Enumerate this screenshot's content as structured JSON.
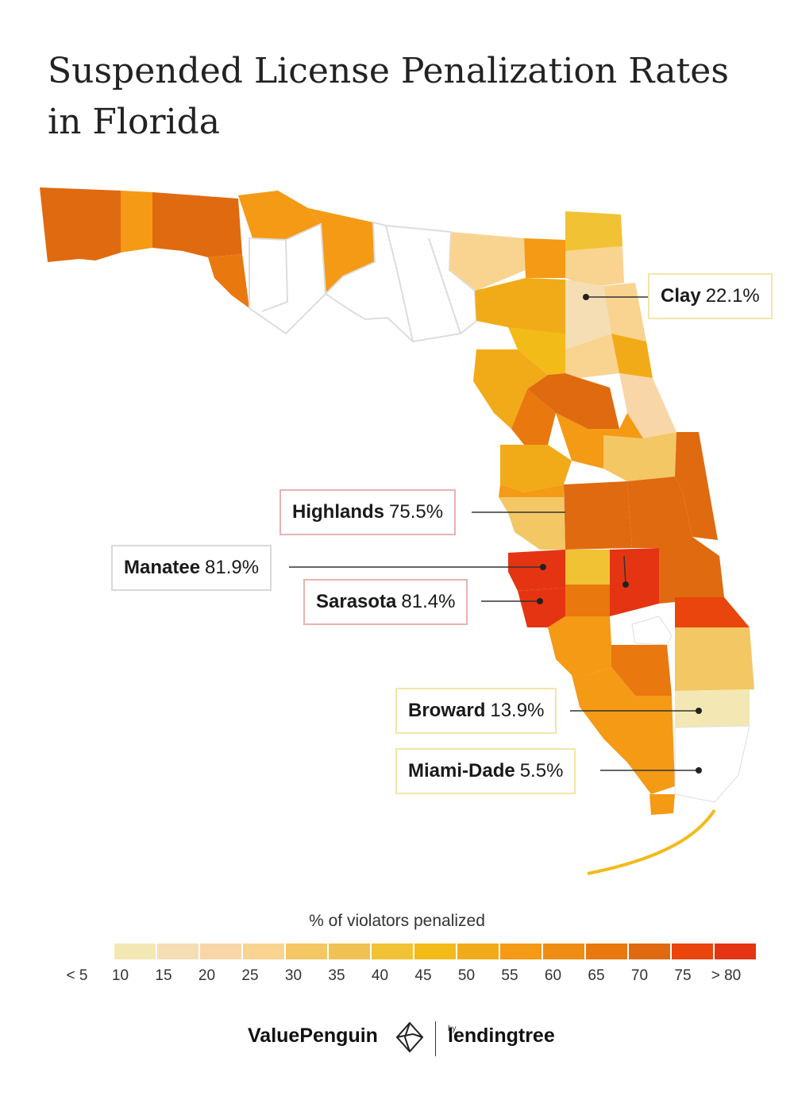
{
  "title": "Suspended License Penalization Rates in Florida",
  "callouts": [
    {
      "county": "Clay",
      "value": "22.1%"
    },
    {
      "county": "Highlands",
      "value": "75.5%"
    },
    {
      "county": "Manatee",
      "value": "81.9%"
    },
    {
      "county": "Sarasota",
      "value": "81.4%"
    },
    {
      "county": "Broward",
      "value": "13.9%"
    },
    {
      "county": "Miami-Dade",
      "value": "5.5%"
    }
  ],
  "legend": {
    "title": "% of violators penalized",
    "ticks": [
      "< 5",
      "10",
      "15",
      "20",
      "25",
      "30",
      "35",
      "40",
      "45",
      "50",
      "55",
      "60",
      "65",
      "70",
      "75",
      "> 80"
    ],
    "colors": [
      "#ffffff",
      "#f3e8b3",
      "#f5deb3",
      "#f8d6a8",
      "#f9d490",
      "#f3c764",
      "#f0c254",
      "#f1c234",
      "#f2bb18",
      "#f2ab18",
      "#f49a15",
      "#ef8c14",
      "#e9780f",
      "#e06a10",
      "#e9450c",
      "#e53412"
    ]
  },
  "footer": {
    "brand_left": "ValuePenguin",
    "brand_by": "by",
    "brand_right": "lendingtree"
  }
}
